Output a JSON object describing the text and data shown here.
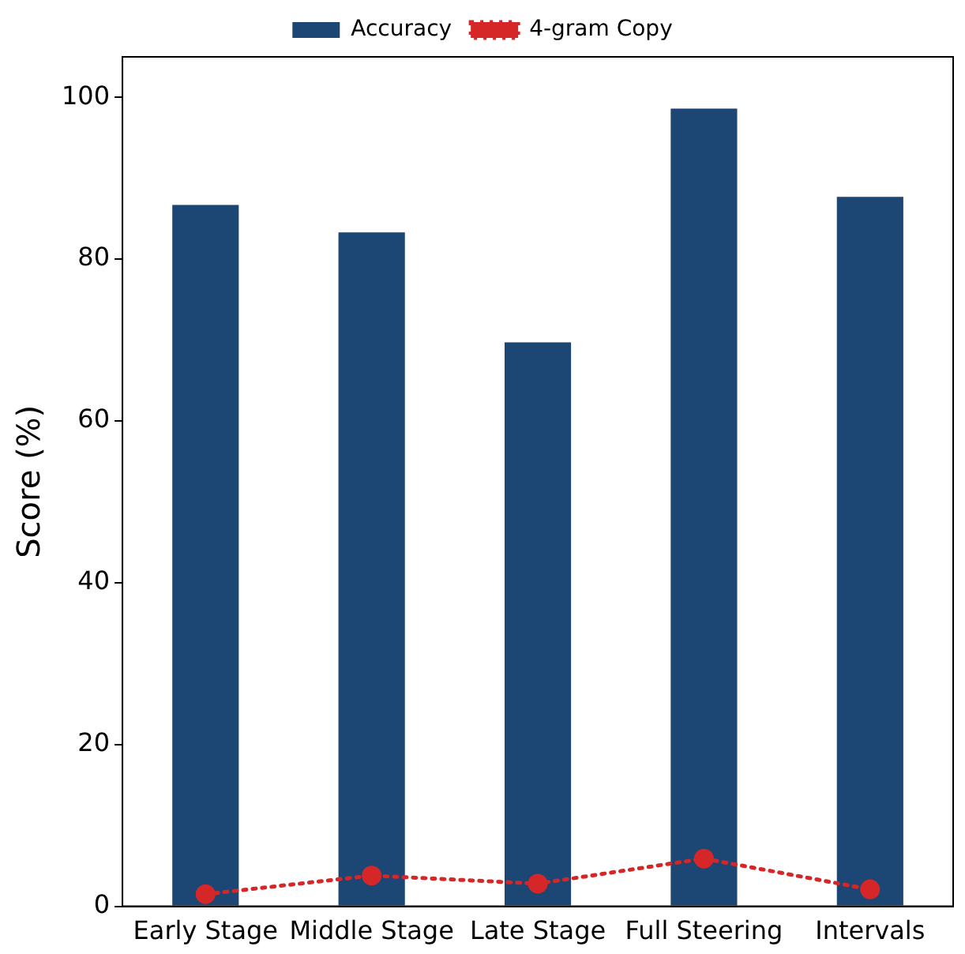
{
  "chart_data": {
    "type": "bar",
    "ylabel": "Score (%)",
    "categories": [
      "Early Stage",
      "Middle Stage",
      "Late Stage",
      "Full Steering",
      "Intervals"
    ],
    "series": [
      {
        "name": "Accuracy",
        "color": "#1c4673",
        "values": [
          86.7,
          83.3,
          69.7,
          98.6,
          87.7
        ]
      },
      {
        "name": "4-gram Copy",
        "type": "line",
        "color": "#d62728",
        "values": [
          1.5,
          3.8,
          2.8,
          5.9,
          2.1
        ],
        "marker": "circle",
        "line_style": "dotted"
      }
    ],
    "ylim": [
      0,
      105
    ],
    "yticks": [
      0,
      20,
      40,
      60,
      80,
      100
    ],
    "grid": false,
    "legend": "top"
  }
}
